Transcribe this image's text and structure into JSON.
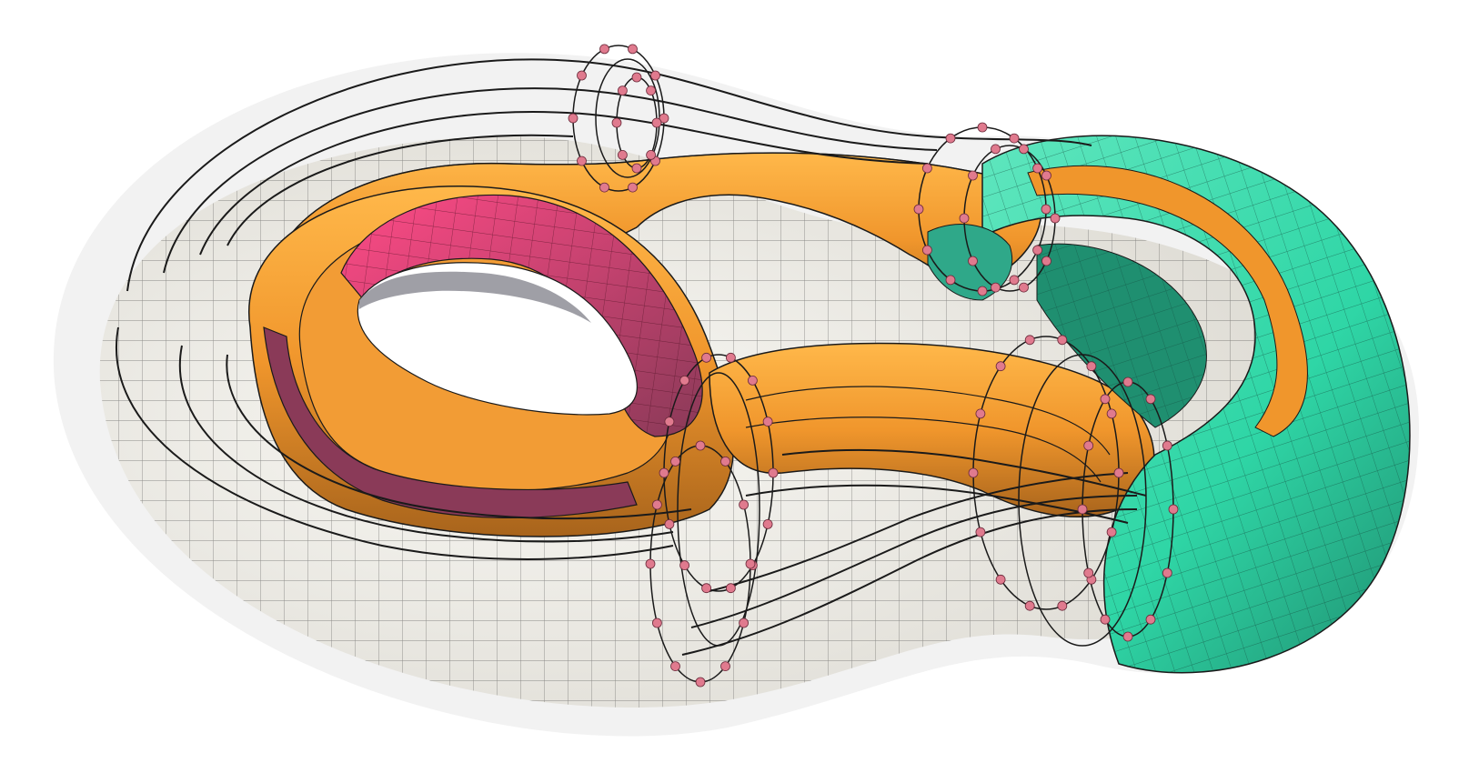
{
  "figure": {
    "background": "#ffffff",
    "colors": {
      "shell": "#f3f1ea",
      "shell_shadow": "#dcd9d0",
      "halo": "#e6e6e6",
      "orange": "#f0962c",
      "orange_dark": "#a8641c",
      "orange_light": "#ffb84a",
      "magenta": "#e8306e",
      "magenta_dark": "#8a3a58",
      "teal": "#2fd6a6",
      "teal_dark": "#1f8f70",
      "teal_light": "#5fe6be",
      "node": "#e07a8e",
      "wire": "#1a1a1a",
      "grid": "#3a3a3a"
    },
    "node_count_visible": "many",
    "description_icon": "genus-three-surface-icon"
  }
}
